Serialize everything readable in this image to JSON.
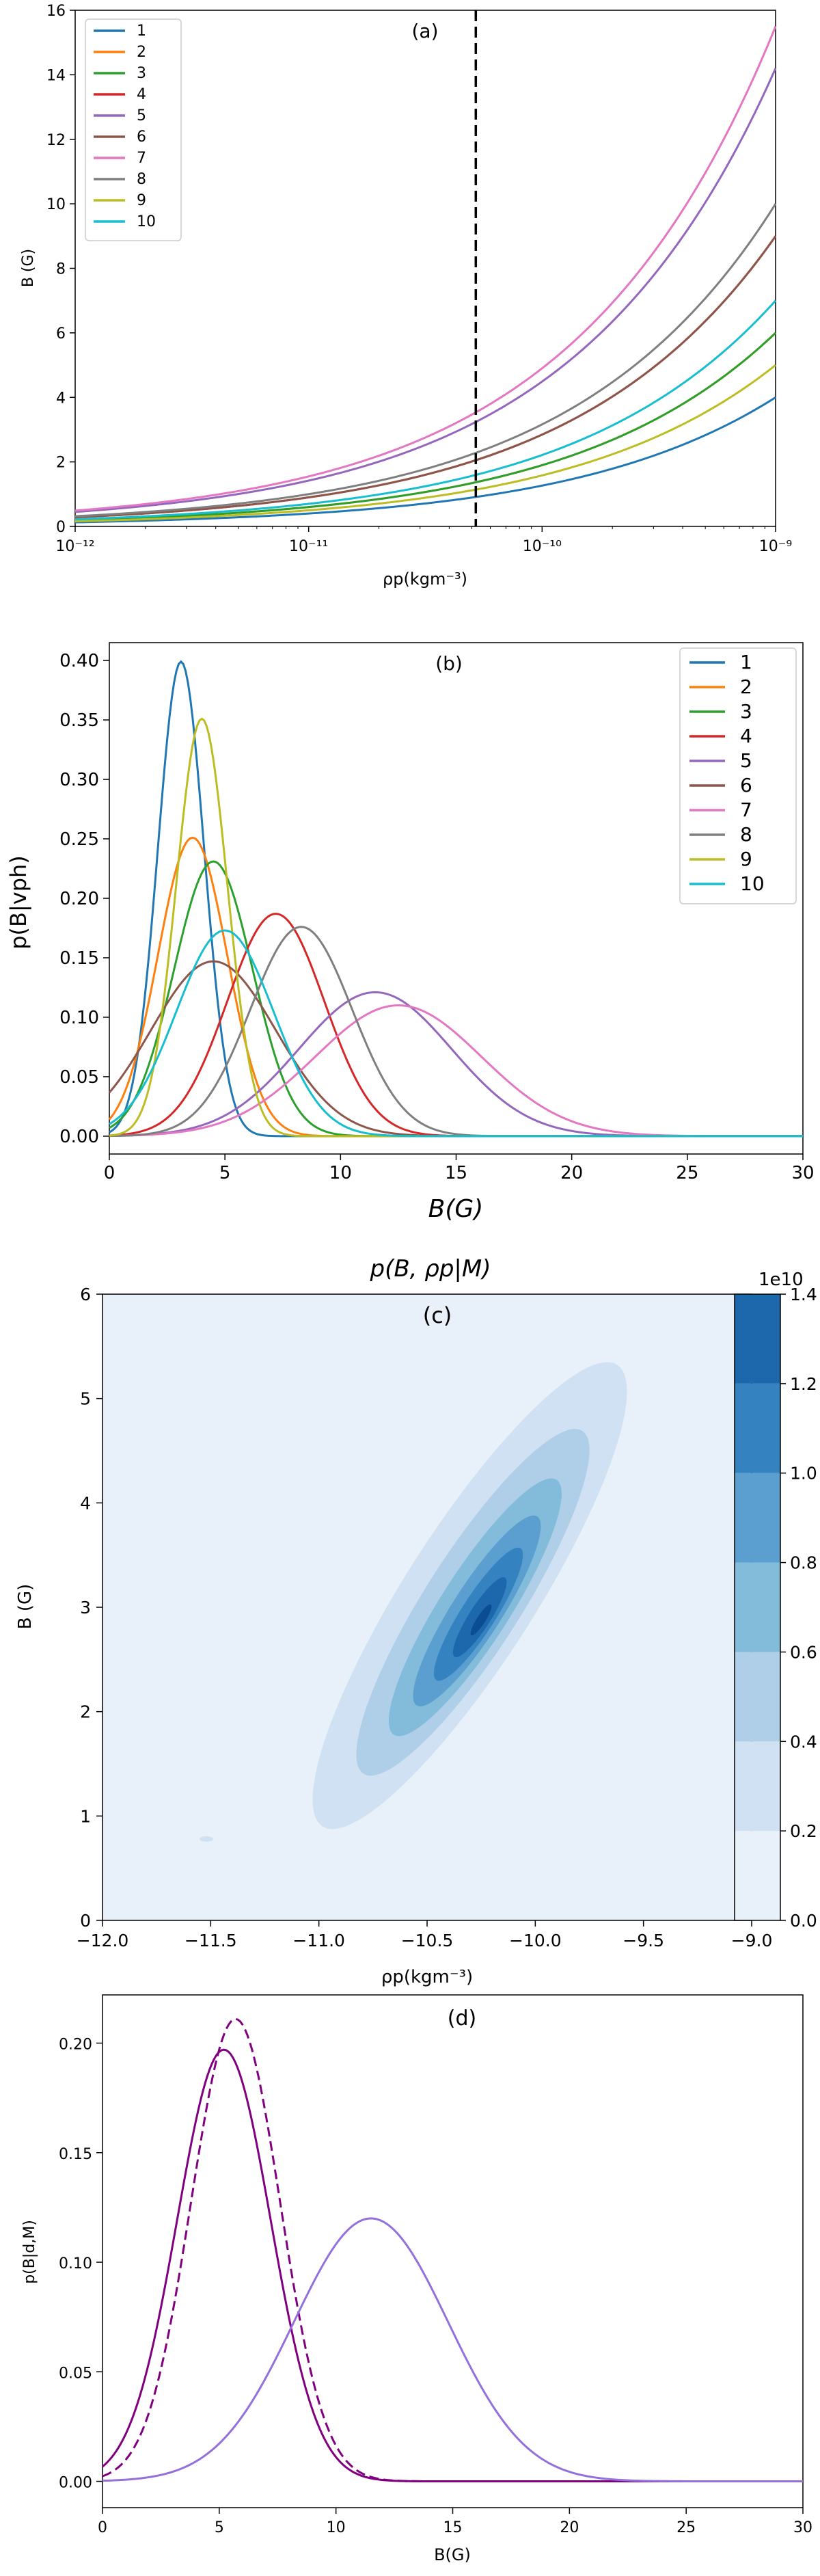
{
  "colors": {
    "c1": "#1f77b4",
    "c2": "#ff7f0e",
    "c3": "#2ca02c",
    "c4": "#d62728",
    "c5": "#9467bd",
    "c6": "#8c564b",
    "c7": "#e377c2",
    "c8": "#7f7f7f",
    "c9": "#bcbd22",
    "c10": "#17becf",
    "purple_dark": "#800080",
    "purple_light": "#9370DB"
  },
  "chart_data": [
    {
      "id": "a",
      "type": "line",
      "panel_label": "(a)",
      "xlabel": "ρp(kgm⁻³)",
      "ylabel": "B (G)",
      "xscale": "log",
      "xlim": [
        1e-12,
        1e-09
      ],
      "ylim": [
        0,
        16
      ],
      "x_ticks": [
        "10⁻¹²",
        "10⁻¹¹",
        "10⁻¹⁰",
        "10⁻⁹"
      ],
      "y_ticks": [
        "0",
        "2",
        "4",
        "6",
        "8",
        "10",
        "12",
        "14",
        "16"
      ],
      "legend_position": "top-left",
      "vertical_line_x": 5.2e-11,
      "series": [
        {
          "name": "1",
          "color_key": "c1",
          "x": [
            1e-12,
            1e-11,
            1e-10,
            1e-09
          ],
          "values": [
            0.13,
            0.4,
            1.26,
            4.0
          ]
        },
        {
          "name": "2",
          "color_key": "c2",
          "x": [
            1e-12,
            1e-11,
            1e-10,
            1e-09
          ],
          "values": [
            0.19,
            0.6,
            1.9,
            6.0
          ]
        },
        {
          "name": "3",
          "color_key": "c3",
          "x": [
            1e-12,
            1e-11,
            1e-10,
            1e-09
          ],
          "values": [
            0.19,
            0.6,
            1.9,
            6.0
          ]
        },
        {
          "name": "4",
          "color_key": "c4",
          "x": [
            1e-12,
            1e-11,
            1e-10,
            1e-09
          ],
          "values": [
            0.28,
            0.9,
            2.85,
            9.0
          ]
        },
        {
          "name": "5",
          "color_key": "c5",
          "x": [
            1e-12,
            1e-11,
            1e-10,
            1e-09
          ],
          "values": [
            0.45,
            1.42,
            4.5,
            14.2
          ]
        },
        {
          "name": "6",
          "color_key": "c6",
          "x": [
            1e-12,
            1e-11,
            1e-10,
            1e-09
          ],
          "values": [
            0.28,
            0.9,
            2.85,
            9.0
          ]
        },
        {
          "name": "7",
          "color_key": "c7",
          "x": [
            1e-12,
            1e-11,
            1e-10,
            1e-09
          ],
          "values": [
            0.49,
            1.55,
            4.9,
            15.5
          ]
        },
        {
          "name": "8",
          "color_key": "c8",
          "x": [
            1e-12,
            1e-11,
            1e-10,
            1e-09
          ],
          "values": [
            0.32,
            1.0,
            3.2,
            10.0
          ]
        },
        {
          "name": "9",
          "color_key": "c9",
          "x": [
            1e-12,
            1e-11,
            1e-10,
            1e-09
          ],
          "values": [
            0.16,
            0.5,
            1.58,
            5.0
          ]
        },
        {
          "name": "10",
          "color_key": "c10",
          "x": [
            1e-12,
            1e-11,
            1e-10,
            1e-09
          ],
          "values": [
            0.22,
            0.7,
            2.2,
            7.0
          ]
        }
      ]
    },
    {
      "id": "b",
      "type": "line",
      "panel_label": "(b)",
      "xlabel": "B(G)",
      "ylabel": "p(B|vph)",
      "xlim": [
        0,
        30
      ],
      "ylim": [
        -0.015,
        0.415
      ],
      "x_ticks": [
        "0",
        "5",
        "10",
        "15",
        "20",
        "25",
        "30"
      ],
      "y_ticks": [
        "0.00",
        "0.05",
        "0.10",
        "0.15",
        "0.20",
        "0.25",
        "0.30",
        "0.35",
        "0.40"
      ],
      "legend_position": "top-right",
      "series": [
        {
          "name": "1",
          "color_key": "c1",
          "peak_x": 3.1,
          "peak_y": 0.399,
          "width": 1.0
        },
        {
          "name": "2",
          "color_key": "c2",
          "peak_x": 3.6,
          "peak_y": 0.251,
          "width": 1.5
        },
        {
          "name": "3",
          "color_key": "c3",
          "peak_x": 4.5,
          "peak_y": 0.231,
          "width": 1.7
        },
        {
          "name": "4",
          "color_key": "c4",
          "peak_x": 7.2,
          "peak_y": 0.187,
          "width": 2.1
        },
        {
          "name": "5",
          "color_key": "c5",
          "peak_x": 11.5,
          "peak_y": 0.121,
          "width": 3.3
        },
        {
          "name": "6",
          "color_key": "c6",
          "peak_x": 4.5,
          "peak_y": 0.147,
          "width": 2.7
        },
        {
          "name": "7",
          "color_key": "c7",
          "peak_x": 12.5,
          "peak_y": 0.11,
          "width": 3.6
        },
        {
          "name": "8",
          "color_key": "c8",
          "peak_x": 8.3,
          "peak_y": 0.176,
          "width": 2.2
        },
        {
          "name": "9",
          "color_key": "c9",
          "peak_x": 4.0,
          "peak_y": 0.351,
          "width": 1.1
        },
        {
          "name": "10",
          "color_key": "c10",
          "peak_x": 5.0,
          "peak_y": 0.173,
          "width": 2.1
        }
      ]
    },
    {
      "id": "c",
      "type": "heatmap",
      "title": "p(B, ρp|M)",
      "panel_label": "(c)",
      "xlabel": "ρp(kgm⁻³)",
      "ylabel": "B (G)",
      "xlim": [
        -12.0,
        -9.0
      ],
      "ylim": [
        0,
        6
      ],
      "x_ticks": [
        "−12.0",
        "−11.5",
        "−11.0",
        "−10.5",
        "−10.0",
        "−9.5",
        "−9.0"
      ],
      "y_ticks": [
        "0",
        "1",
        "2",
        "3",
        "4",
        "5",
        "6"
      ],
      "colorbar_ticks": [
        "0.0",
        "0.2",
        "0.4",
        "0.6",
        "0.8",
        "1.0",
        "1.2",
        "1.4"
      ],
      "colorbar_multiplier": "1e10",
      "levels": [
        0.0,
        0.2,
        0.4,
        0.6,
        0.8,
        1.0,
        1.2,
        1.4
      ],
      "level_colors": [
        "#e8f0f9",
        "#cfe1f2",
        "#aecfe7",
        "#83bbdb",
        "#5a9fcf",
        "#3582c0",
        "#1d67ad",
        "#0b4d92"
      ],
      "peak": {
        "x": -10.3,
        "y": 3.1,
        "value": 1.32
      }
    },
    {
      "id": "d",
      "type": "line",
      "panel_label": "(d)",
      "xlabel": "B(G)",
      "ylabel": "p(B|d,M)",
      "xlim": [
        0,
        30
      ],
      "ylim": [
        -0.012,
        0.222
      ],
      "x_ticks": [
        "0",
        "5",
        "10",
        "15",
        "20",
        "25",
        "30"
      ],
      "y_ticks": [
        "0.00",
        "0.05",
        "0.10",
        "0.15",
        "0.20"
      ],
      "series": [
        {
          "color_key": "purple_dark",
          "style": "solid",
          "peak_x": 5.2,
          "peak_y": 0.197,
          "width": 2.0
        },
        {
          "color_key": "purple_dark",
          "style": "dashed",
          "peak_x": 5.7,
          "peak_y": 0.211,
          "width": 1.9
        },
        {
          "color_key": "purple_light",
          "style": "solid",
          "peak_x": 11.5,
          "peak_y": 0.12,
          "width": 3.3
        }
      ]
    }
  ]
}
